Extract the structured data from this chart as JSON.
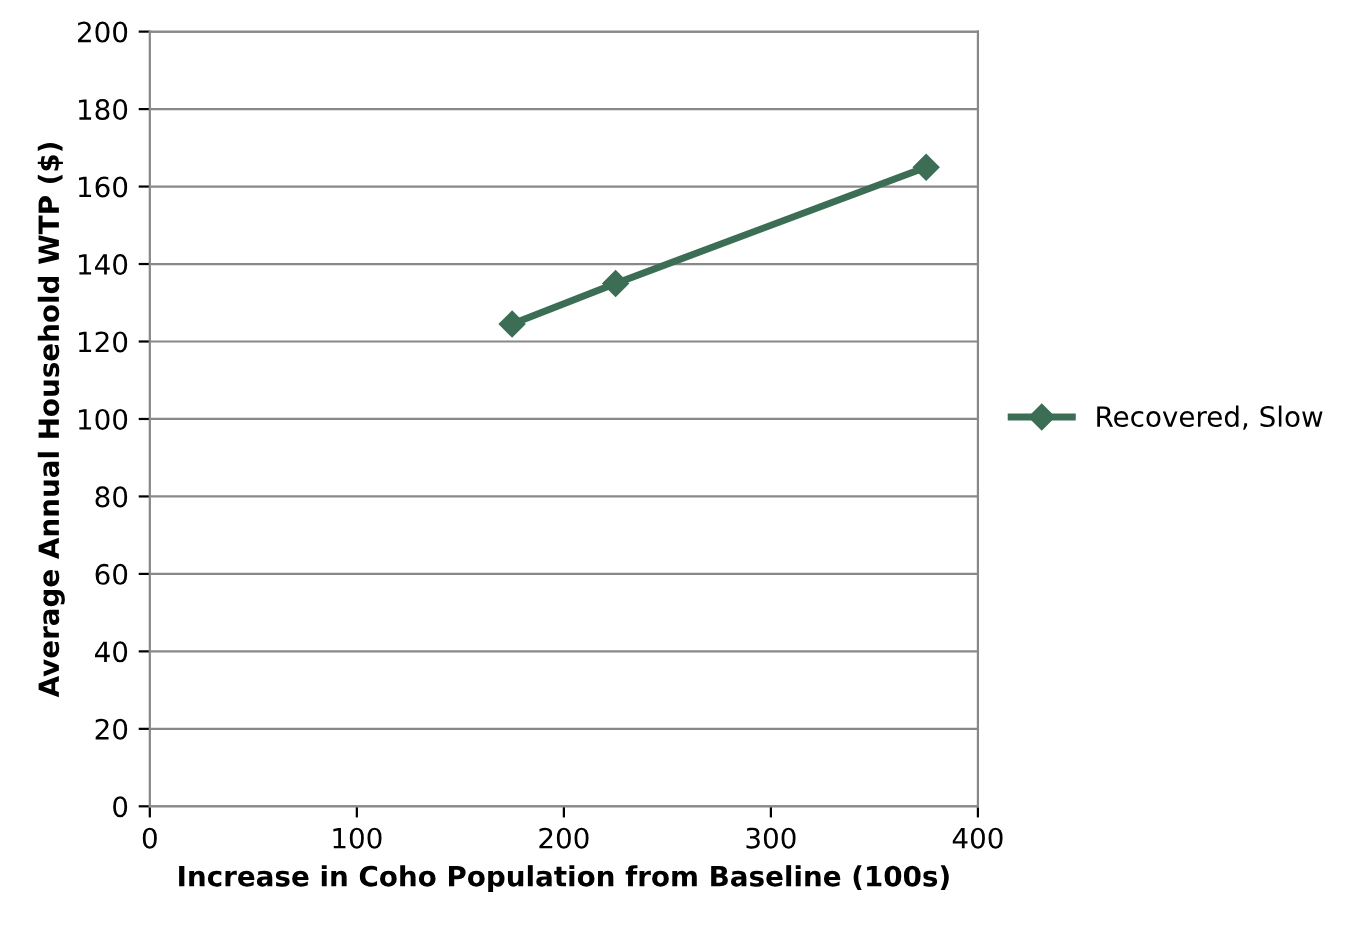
{
  "chart_data": {
    "type": "line",
    "xlabel": "Increase in Coho Population from Baseline (100s)",
    "ylabel": "Average Annual Household WTP ($)",
    "series": [
      {
        "name": "Recovered, Slow",
        "color": "#3b6e55",
        "x": [
          175,
          225,
          375
        ],
        "values": [
          124.5,
          135,
          165
        ]
      }
    ],
    "xlim": [
      0,
      400
    ],
    "xticks": [
      0,
      100,
      200,
      300,
      400
    ],
    "ylim": [
      0,
      200
    ],
    "yticks": [
      0,
      20,
      40,
      60,
      80,
      100,
      120,
      140,
      160,
      180,
      200
    ],
    "grid": "y",
    "legend": "right",
    "marker": "diamond",
    "line_style": "solid"
  }
}
